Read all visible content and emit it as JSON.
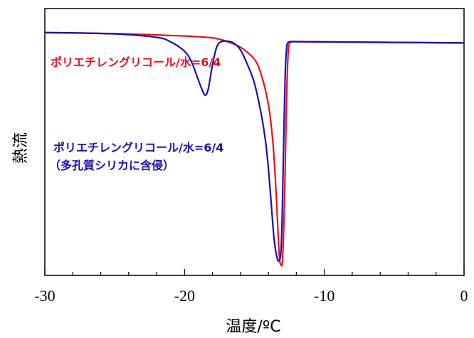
{
  "chart_data": {
    "type": "line",
    "xlabel": "温度/ºC",
    "ylabel": "熱流",
    "xlim": [
      -30,
      0
    ],
    "ylim": [
      0,
      1
    ],
    "x_ticks": [
      -30,
      -20,
      -10,
      0
    ],
    "x_tick_labels": [
      "-30",
      "-20",
      "-10",
      "0"
    ],
    "grid": false,
    "y_tick_labels_shown": false,
    "series": [
      {
        "name": "ポリエチレングリコール/水=6/4",
        "color": "#e8101e",
        "x": [
          -30,
          -25,
          -20,
          -18,
          -17,
          -16,
          -15,
          -14.5,
          -14,
          -13.7,
          -13.5,
          -13.3,
          -13.2,
          -13.1,
          -13.0,
          -12.9,
          -12.8,
          -12.7,
          -12.6,
          -12.5,
          -12.3,
          -12,
          -10,
          -5,
          0
        ],
        "y": [
          0.91,
          0.906,
          0.897,
          0.89,
          0.877,
          0.855,
          0.81,
          0.75,
          0.64,
          0.51,
          0.36,
          0.15,
          0.06,
          0.04,
          0.05,
          0.18,
          0.4,
          0.66,
          0.82,
          0.868,
          0.875,
          0.876,
          0.875,
          0.873,
          0.871
        ]
      },
      {
        "name": "ポリエチレングリコール/水=6/4\n（多孔質シリカに含侵）",
        "color": "#1a0fb4",
        "x": [
          -30,
          -25,
          -22,
          -21,
          -20,
          -19.5,
          -19,
          -18.7,
          -18.5,
          -18.3,
          -18,
          -17.7,
          -17.4,
          -17.0,
          -16.5,
          -16,
          -15.5,
          -15,
          -14.5,
          -14.2,
          -14,
          -13.8,
          -13.6,
          -13.4,
          -13.25,
          -13.1,
          -13.0,
          -12.9,
          -12.8,
          -12.7,
          -12.6,
          -12.4,
          -12.2,
          -12,
          -10,
          -5,
          0
        ],
        "y": [
          0.91,
          0.905,
          0.892,
          0.875,
          0.84,
          0.8,
          0.73,
          0.69,
          0.675,
          0.7,
          0.79,
          0.856,
          0.875,
          0.878,
          0.871,
          0.845,
          0.79,
          0.72,
          0.6,
          0.5,
          0.4,
          0.27,
          0.14,
          0.07,
          0.055,
          0.09,
          0.26,
          0.52,
          0.75,
          0.85,
          0.872,
          0.876,
          0.876,
          0.876,
          0.875,
          0.873,
          0.871
        ]
      }
    ]
  }
}
